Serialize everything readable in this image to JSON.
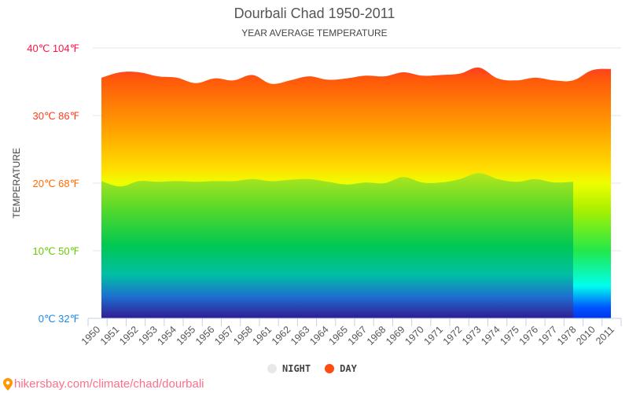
{
  "chart_data": {
    "type": "area",
    "title": "Dourbali Chad 1950-2011",
    "subtitle": "YEAR AVERAGE TEMPERATURE",
    "ylabel": "TEMPERATURE",
    "ylim": [
      0,
      40
    ],
    "yticks": [
      {
        "value": 0,
        "label": "0℃ 32℉",
        "color": "#1e88e5"
      },
      {
        "value": 10,
        "label": "10℃ 50℉",
        "color": "#66cc00"
      },
      {
        "value": 20,
        "label": "20℃ 68℉",
        "color": "#ff6d00"
      },
      {
        "value": 30,
        "label": "30℃ 86℉",
        "color": "#ff3d1f"
      },
      {
        "value": 40,
        "label": "40℃ 104℉",
        "color": "#ff1744"
      }
    ],
    "categories": [
      "1950",
      "1951",
      "1952",
      "1953",
      "1954",
      "1955",
      "1956",
      "1957",
      "1958",
      "1961",
      "1962",
      "1963",
      "1964",
      "1965",
      "1967",
      "1968",
      "1969",
      "1970",
      "1971",
      "1972",
      "1973",
      "1974",
      "1975",
      "1976",
      "1977",
      "1978",
      "2010",
      "2011"
    ],
    "series": [
      {
        "name": "NIGHT",
        "color": "#dddddd",
        "values": [
          20.3,
          19.5,
          20.3,
          20.2,
          20.3,
          20.2,
          20.3,
          20.3,
          20.6,
          20.3,
          20.5,
          20.6,
          20.2,
          19.8,
          20.1,
          20.0,
          20.9,
          20.1,
          20.1,
          20.6,
          21.5,
          20.6,
          20.2,
          20.6,
          20.1,
          20.2,
          null,
          null
        ]
      },
      {
        "name": "DAY",
        "color": "#ff5722",
        "values": [
          35.6,
          36.4,
          36.4,
          35.8,
          35.6,
          34.8,
          35.5,
          35.2,
          36.0,
          34.7,
          35.2,
          35.8,
          35.3,
          35.5,
          35.9,
          35.8,
          36.4,
          35.9,
          36.0,
          36.2,
          37.1,
          35.5,
          35.2,
          35.6,
          35.2,
          35.2,
          36.7,
          36.9
        ]
      }
    ],
    "grid": true,
    "legend": "bottom-center"
  },
  "footer": {
    "link": "hikersbay.com/climate/chad/dourbali"
  }
}
